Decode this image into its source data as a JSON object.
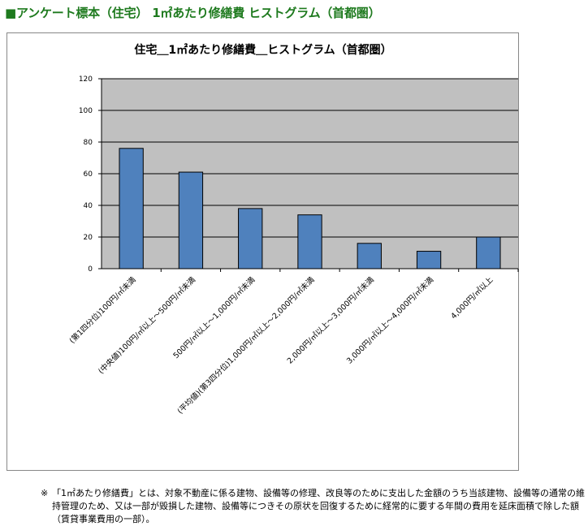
{
  "page": {
    "heading": "■アンケート標本（住宅） 1㎡あたり修繕費 ヒストグラム（首都圏）",
    "footnote_mark": "※",
    "footnote": "「1㎡あたり修繕費」とは、対象不動産に係る建物、設備等の修理、改良等のために支出した金額のうち当該建物、設備等の通常の維持管理のため、又は一部が毀損した建物、設備等につきその原状を回復するために経常的に要する年間の費用を延床面積で除した額（賃貸事業費用の一部）。"
  },
  "colors": {
    "bar": "#4f81bd",
    "bar_stroke": "#000000",
    "plot_bg": "#c0c0c0",
    "gridline": "#000000",
    "heading": "#1e7a1e"
  },
  "chart_data": {
    "type": "bar",
    "title": "住宅＿1㎡あたり修繕費＿ヒストグラム（首都圏）",
    "xlabel": "",
    "ylabel": "",
    "ylim": [
      0,
      120
    ],
    "yticks": [
      0,
      20,
      40,
      60,
      80,
      100,
      120
    ],
    "grid": true,
    "legend": "none",
    "categories": [
      "(第1四分位)100円/㎡未満",
      "(中央値)100円/㎡以上～500円/㎡未満",
      "500円/㎡以上～1,000円/㎡未満",
      "(平均値)(第3四分位)1,000円/㎡以上～2,000円/㎡未満",
      "2,000円/㎡以上～3,000円/㎡未満",
      "3,000円/㎡以上～4,000円/㎡未満",
      "4,000円/㎡以上"
    ],
    "values": [
      76,
      61,
      38,
      34,
      16,
      11,
      20
    ]
  }
}
